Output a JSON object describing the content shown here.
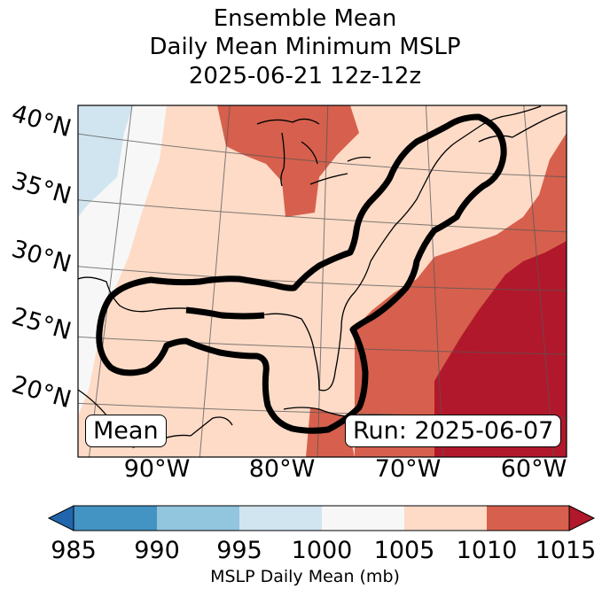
{
  "title": {
    "line1": "Ensemble Mean",
    "line2": "Daily Mean Minimum MSLP",
    "line3": "2025-06-21 12z-12z"
  },
  "map": {
    "latitude_labels": [
      "40°N",
      "35°N",
      "30°N",
      "25°N",
      "20°N"
    ],
    "longitude_labels": [
      "90°W",
      "80°W",
      "70°W",
      "60°W"
    ],
    "left_badge": "Mean",
    "right_badge": "Run: 2025-06-07",
    "outline_color": "#000000"
  },
  "colorbar": {
    "ticks": [
      "985",
      "990",
      "995",
      "1000",
      "1005",
      "1010",
      "1015"
    ],
    "label": "MSLP Daily Mean (mb)",
    "colors": {
      "under": "#2166ac",
      "985-990": "#4393c3",
      "990-995": "#92c5de",
      "995-1000": "#d1e5f0",
      "1000-1005": "#f7f7f7",
      "1005-1010": "#fddbc7",
      "1010-1015": "#d6604d",
      "over": "#b2182b"
    }
  }
}
